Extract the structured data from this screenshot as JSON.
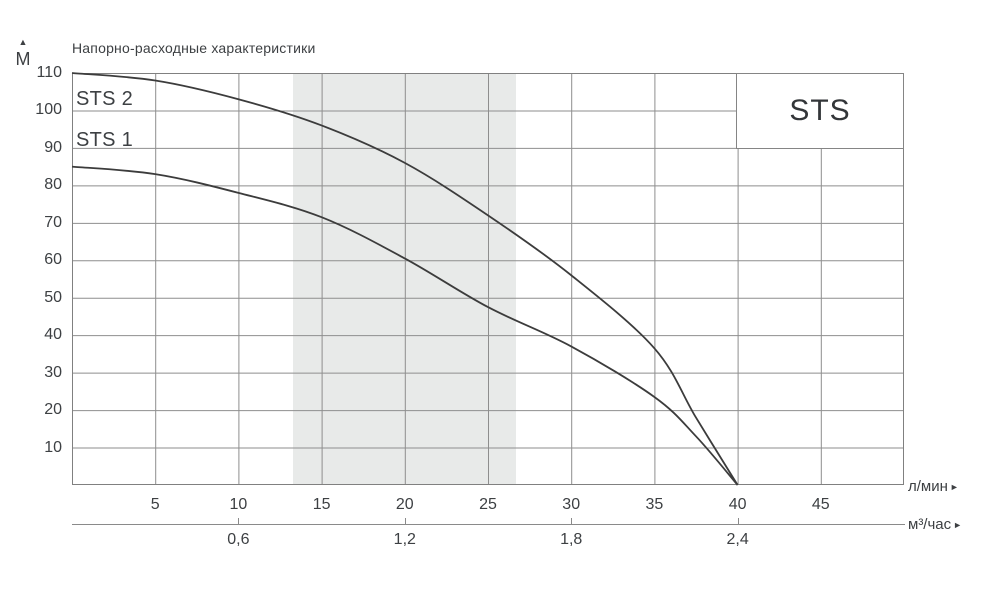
{
  "title": "Напорно-расходные характеристики",
  "series_box_label": "STS",
  "y_axis": {
    "unit": "М",
    "arrow_glyph": "▲"
  },
  "x_axis_primary": {
    "unit": "л/мин",
    "arrow_glyph": "►"
  },
  "x_axis_secondary": {
    "unit": "м³/час",
    "arrow_glyph": "►"
  },
  "colors": {
    "curve": "#3c3c3c",
    "grid": "#8e8e8e",
    "border": "#808080",
    "band": "#e8eae9",
    "text": "#3d4043"
  },
  "chart_data": {
    "type": "line",
    "title": "Напорно-расходные характеристики",
    "ylabel": "М",
    "xlabel_primary": "л/мин",
    "xlabel_secondary": "м³/час",
    "xlim": [
      0,
      50
    ],
    "ylim": [
      0,
      110
    ],
    "grid": true,
    "legend_position": "curve-labels-top-left",
    "x_ticks_lmin": [
      5,
      10,
      15,
      20,
      25,
      30,
      35,
      40,
      45
    ],
    "y_ticks": [
      10,
      20,
      30,
      40,
      50,
      60,
      70,
      80,
      90,
      100,
      110
    ],
    "x_ticks_m3h": [
      {
        "label": "0,6",
        "at_lmin": 10
      },
      {
        "label": "1,2",
        "at_lmin": 20
      },
      {
        "label": "1,8",
        "at_lmin": 30
      },
      {
        "label": "2,4",
        "at_lmin": 40
      }
    ],
    "operating_band_lmin": [
      13.3,
      26.7
    ],
    "series": [
      {
        "name": "STS 2",
        "points": [
          [
            0,
            110
          ],
          [
            5,
            108
          ],
          [
            10,
            103
          ],
          [
            15,
            96
          ],
          [
            20,
            86
          ],
          [
            25,
            72
          ],
          [
            30,
            56
          ],
          [
            35,
            36.5
          ],
          [
            37.5,
            18
          ],
          [
            40,
            0
          ]
        ]
      },
      {
        "name": "STS 1",
        "points": [
          [
            0,
            85
          ],
          [
            5,
            83
          ],
          [
            10,
            78
          ],
          [
            15,
            71.5
          ],
          [
            20,
            60.5
          ],
          [
            25,
            47.5
          ],
          [
            30,
            37
          ],
          [
            35,
            23.5
          ],
          [
            37.5,
            13
          ],
          [
            40,
            0
          ]
        ]
      }
    ]
  }
}
